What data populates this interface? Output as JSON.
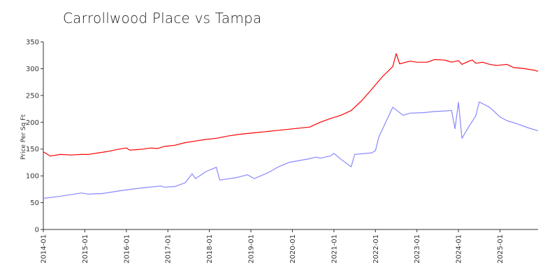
{
  "chart_data": {
    "type": "line",
    "title": "Carrollwood Place vs Tampa",
    "xlabel": "",
    "ylabel": "Price Per Sq Ft",
    "ylim": [
      0,
      350
    ],
    "yticks": [
      0,
      50,
      100,
      150,
      200,
      250,
      300,
      350
    ],
    "xticks": [
      "2014-01",
      "2015-01",
      "2016-01",
      "2017-01",
      "2018-01",
      "2019-01",
      "2020-01",
      "2021-01",
      "2022-01",
      "2023-01",
      "2024-01",
      "2025-01"
    ],
    "xlim": [
      "2014-01",
      "2025-12"
    ],
    "grid": false,
    "legend": "none",
    "series": [
      {
        "color": "#ff0000",
        "points": [
          [
            "2014-01",
            145
          ],
          [
            "2014-03",
            137
          ],
          [
            "2014-06",
            140
          ],
          [
            "2014-09",
            139
          ],
          [
            "2014-12",
            140
          ],
          [
            "2015-02",
            140
          ],
          [
            "2015-05",
            143
          ],
          [
            "2015-08",
            146
          ],
          [
            "2015-11",
            150
          ],
          [
            "2016-01",
            152
          ],
          [
            "2016-02",
            148
          ],
          [
            "2016-04",
            149
          ],
          [
            "2016-06",
            150
          ],
          [
            "2016-08",
            152
          ],
          [
            "2016-10",
            151
          ],
          [
            "2016-12",
            155
          ],
          [
            "2017-03",
            157
          ],
          [
            "2017-06",
            162
          ],
          [
            "2017-09",
            165
          ],
          [
            "2017-12",
            168
          ],
          [
            "2018-03",
            170
          ],
          [
            "2018-06",
            174
          ],
          [
            "2018-09",
            177
          ],
          [
            "2018-12",
            179
          ],
          [
            "2019-03",
            181
          ],
          [
            "2019-06",
            183
          ],
          [
            "2019-09",
            185
          ],
          [
            "2019-12",
            187
          ],
          [
            "2020-03",
            189
          ],
          [
            "2020-06",
            191
          ],
          [
            "2020-09",
            200
          ],
          [
            "2020-12",
            207
          ],
          [
            "2021-03",
            213
          ],
          [
            "2021-06",
            222
          ],
          [
            "2021-09",
            240
          ],
          [
            "2021-12",
            262
          ],
          [
            "2022-03",
            285
          ],
          [
            "2022-06",
            304
          ],
          [
            "2022-07",
            328
          ],
          [
            "2022-08",
            309
          ],
          [
            "2022-11",
            314
          ],
          [
            "2023-01",
            312
          ],
          [
            "2023-04",
            312
          ],
          [
            "2023-06",
            317
          ],
          [
            "2023-09",
            316
          ],
          [
            "2023-11",
            312
          ],
          [
            "2024-01",
            315
          ],
          [
            "2024-02",
            308
          ],
          [
            "2024-04",
            314
          ],
          [
            "2024-05",
            316
          ],
          [
            "2024-06",
            310
          ],
          [
            "2024-08",
            312
          ],
          [
            "2024-10",
            308
          ],
          [
            "2024-12",
            306
          ],
          [
            "2025-03",
            308
          ],
          [
            "2025-05",
            302
          ],
          [
            "2025-08",
            300
          ],
          [
            "2025-11",
            297
          ],
          [
            "2025-12",
            295
          ]
        ]
      },
      {
        "color": "#8888ff",
        "points": [
          [
            "2014-01",
            58
          ],
          [
            "2014-06",
            62
          ],
          [
            "2014-12",
            68
          ],
          [
            "2015-02",
            66
          ],
          [
            "2015-06",
            67
          ],
          [
            "2015-12",
            73
          ],
          [
            "2016-06",
            78
          ],
          [
            "2016-11",
            81
          ],
          [
            "2016-12",
            79
          ],
          [
            "2017-03",
            80
          ],
          [
            "2017-06",
            87
          ],
          [
            "2017-08",
            104
          ],
          [
            "2017-09",
            95
          ],
          [
            "2017-12",
            108
          ],
          [
            "2018-03",
            116
          ],
          [
            "2018-04",
            92
          ],
          [
            "2018-09",
            97
          ],
          [
            "2018-12",
            102
          ],
          [
            "2019-02",
            95
          ],
          [
            "2019-06",
            106
          ],
          [
            "2019-09",
            117
          ],
          [
            "2019-12",
            125
          ],
          [
            "2020-06",
            132
          ],
          [
            "2020-08",
            135
          ],
          [
            "2020-09",
            133
          ],
          [
            "2020-12",
            137
          ],
          [
            "2021-01",
            142
          ],
          [
            "2021-03",
            131
          ],
          [
            "2021-06",
            117
          ],
          [
            "2021-07",
            140
          ],
          [
            "2021-12",
            143
          ],
          [
            "2022-01",
            147
          ],
          [
            "2022-02",
            173
          ],
          [
            "2022-06",
            228
          ],
          [
            "2022-09",
            213
          ],
          [
            "2022-11",
            217
          ],
          [
            "2023-03",
            218
          ],
          [
            "2023-06",
            220
          ],
          [
            "2023-09",
            221
          ],
          [
            "2023-11",
            222
          ],
          [
            "2023-12",
            188
          ],
          [
            "2024-01",
            237
          ],
          [
            "2024-02",
            170
          ],
          [
            "2024-04",
            192
          ],
          [
            "2024-06",
            212
          ],
          [
            "2024-07",
            238
          ],
          [
            "2024-10",
            228
          ],
          [
            "2025-01",
            210
          ],
          [
            "2025-03",
            203
          ],
          [
            "2025-06",
            197
          ],
          [
            "2025-09",
            190
          ],
          [
            "2025-12",
            184
          ]
        ]
      }
    ]
  }
}
